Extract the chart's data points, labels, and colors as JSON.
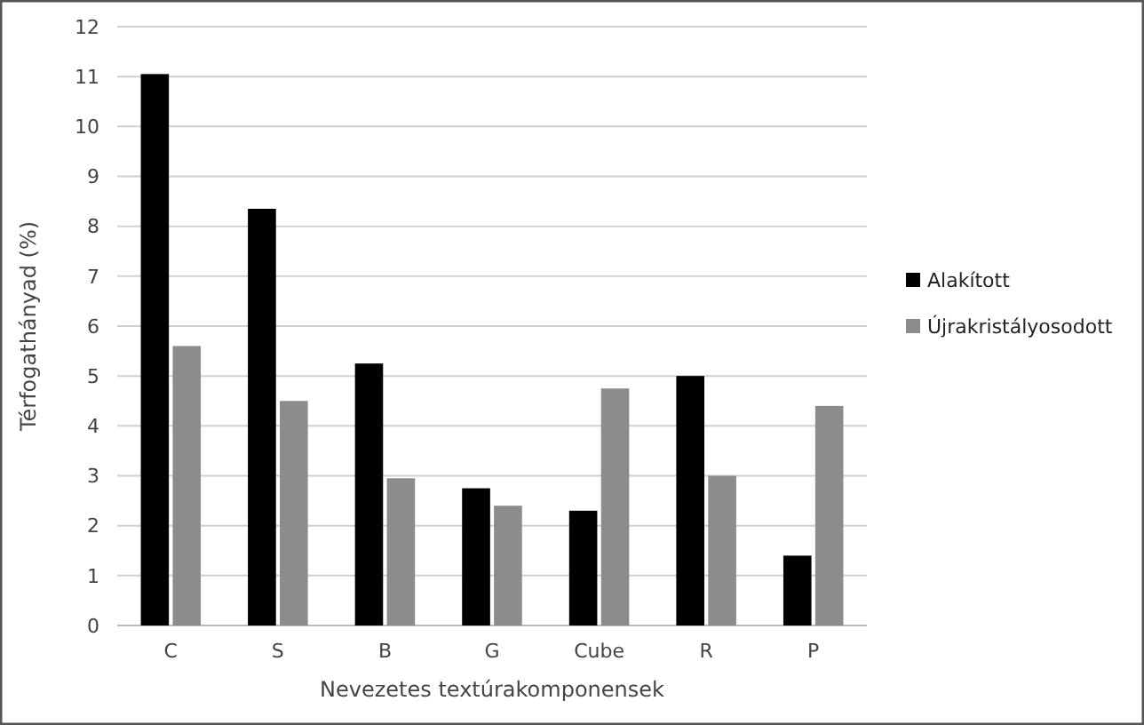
{
  "chart_data": {
    "type": "bar",
    "xlabel": "Nevezetes textúrakomponensek",
    "ylabel": "Térfogathányad (%)",
    "categories": [
      "C",
      "S",
      "B",
      "G",
      "Cube",
      "R",
      "P"
    ],
    "series": [
      {
        "name": "Alakított",
        "color": "#000000",
        "values": [
          11.05,
          8.35,
          5.25,
          2.75,
          2.3,
          5.0,
          1.4
        ]
      },
      {
        "name": "Újrakristályosodott",
        "color": "#8c8c8c",
        "values": [
          5.6,
          4.5,
          2.95,
          2.4,
          4.75,
          3.0,
          4.4
        ]
      }
    ],
    "ylim": [
      0,
      12
    ],
    "yticks": [
      0,
      1,
      2,
      3,
      4,
      5,
      6,
      7,
      8,
      9,
      10,
      11,
      12
    ],
    "grid": "y",
    "legend": "right"
  }
}
